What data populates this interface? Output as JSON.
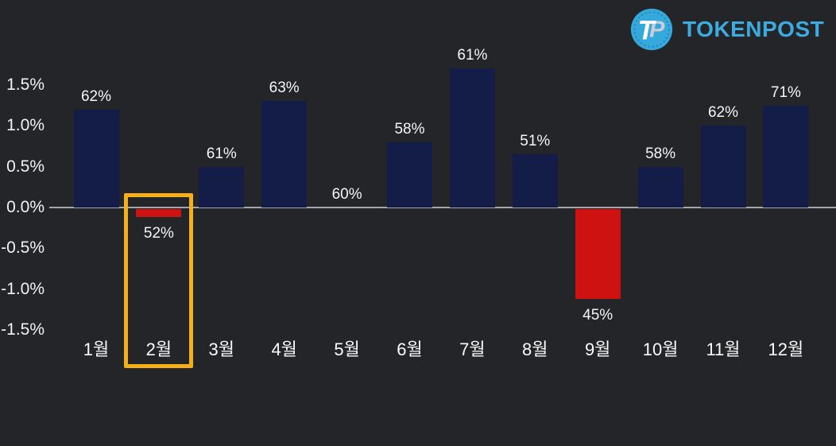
{
  "logo": {
    "monogram_t": "T",
    "monogram_p": "P",
    "text": "TOKENPOST"
  },
  "colors": {
    "background": "#242528",
    "bar_positive": "#141c48",
    "bar_negative": "#ce1111",
    "highlight_box": "#f5af19",
    "zero_line": "#a3a7ab",
    "tick_text": "#f2f2f2",
    "month_text": "#fafafa",
    "value_text": "#f5f5f5",
    "logo_circle": "#36a9dc",
    "logo_ring": "#1e82ad",
    "logo_text": "#3cabdf",
    "logo_t": "#ffffff",
    "logo_p": "#c9ced4"
  },
  "chart_data": {
    "type": "bar",
    "title": "",
    "xlabel": "",
    "ylabel": "",
    "categories": [
      "1월",
      "2월",
      "3월",
      "4월",
      "5월",
      "6월",
      "7월",
      "8월",
      "9월",
      "10월",
      "11월",
      "12월"
    ],
    "series": [
      {
        "name": "bar-values-percent",
        "values": [
          1.2,
          -0.1,
          0.5,
          1.3,
          0,
          0.8,
          1.7,
          0.65,
          -1.1,
          0.5,
          1.0,
          1.25
        ]
      },
      {
        "name": "data-labels",
        "values": [
          "62%",
          "52%",
          "61%",
          "63%",
          "60%",
          "58%",
          "61%",
          "51%",
          "45%",
          "58%",
          "62%",
          "71%"
        ]
      }
    ],
    "yticks": {
      "labels": [
        "1.5%",
        "1.0%",
        "0.5%",
        "0.0%",
        "-0.5%",
        "-1.0%",
        "-1.5%"
      ],
      "values": [
        1.5,
        1.0,
        0.5,
        0.0,
        -0.5,
        -1.0,
        -1.5
      ]
    },
    "ylim": [
      -1.75,
      1.9
    ],
    "grid": false,
    "legend": false,
    "zero_line": true,
    "highlighted_category": "2월",
    "negative_categories": [
      "2월",
      "9월"
    ]
  }
}
